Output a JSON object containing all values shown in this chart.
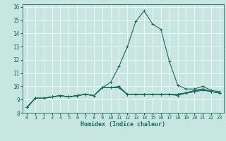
{
  "xlabel": "Humidex (Indice chaleur)",
  "xlim": [
    -0.5,
    23.5
  ],
  "ylim": [
    8,
    16.2
  ],
  "xticks": [
    0,
    1,
    2,
    3,
    4,
    5,
    6,
    7,
    8,
    9,
    10,
    11,
    12,
    13,
    14,
    15,
    16,
    17,
    18,
    19,
    20,
    21,
    22,
    23
  ],
  "yticks": [
    8,
    9,
    10,
    11,
    12,
    13,
    14,
    15,
    16
  ],
  "bg_color": "#c8e6e0",
  "grid_color": "#ffffff",
  "line_color": "#1a6b60",
  "series": [
    [
      8.4,
      9.1,
      9.1,
      9.2,
      9.3,
      9.2,
      9.3,
      9.4,
      9.3,
      9.9,
      10.3,
      11.5,
      13.0,
      14.9,
      15.7,
      14.7,
      14.3,
      11.9,
      10.1,
      9.8,
      9.8,
      10.0,
      9.7,
      9.6
    ],
    [
      8.4,
      9.1,
      9.1,
      9.2,
      9.3,
      9.2,
      9.3,
      9.4,
      9.3,
      9.9,
      9.9,
      10.0,
      9.4,
      9.4,
      9.4,
      9.4,
      9.4,
      9.4,
      9.4,
      9.5,
      9.7,
      9.8,
      9.6,
      9.5
    ],
    [
      8.4,
      9.1,
      9.1,
      9.2,
      9.3,
      9.2,
      9.3,
      9.4,
      9.3,
      9.9,
      9.9,
      9.9,
      9.4,
      9.4,
      9.4,
      9.4,
      9.4,
      9.4,
      9.4,
      9.5,
      9.6,
      9.8,
      9.6,
      9.5
    ],
    [
      8.4,
      9.1,
      9.1,
      9.2,
      9.3,
      9.2,
      9.3,
      9.4,
      9.3,
      9.9,
      9.9,
      9.9,
      9.4,
      9.4,
      9.4,
      9.4,
      9.4,
      9.4,
      9.4,
      9.5,
      9.6,
      9.8,
      9.6,
      9.5
    ],
    [
      8.4,
      9.1,
      9.1,
      9.2,
      9.3,
      9.2,
      9.3,
      9.4,
      9.3,
      9.9,
      9.9,
      9.9,
      9.4,
      9.4,
      9.4,
      9.4,
      9.4,
      9.4,
      9.3,
      9.5,
      9.6,
      9.7,
      9.6,
      9.5
    ]
  ]
}
